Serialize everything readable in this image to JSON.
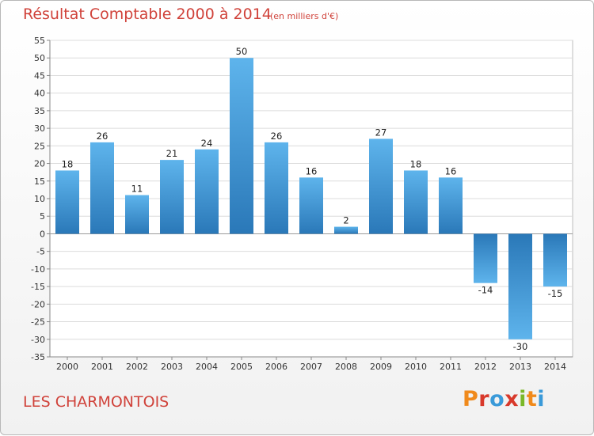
{
  "header": {
    "title": "Résultat Comptable 2000 à 2014",
    "unit": "(en milliers d'€)"
  },
  "footer": {
    "place": "LES CHARMONTOIS",
    "logo": [
      "P",
      "r",
      "o",
      "x",
      "i",
      "t",
      "i"
    ]
  },
  "colors": {
    "accent": "#d0423a",
    "bar_light": "#5eb4ec",
    "bar_dark": "#2a78b8"
  },
  "chart_data": {
    "type": "bar",
    "categories": [
      "2000",
      "2001",
      "2002",
      "2003",
      "2004",
      "2005",
      "2006",
      "2007",
      "2008",
      "2009",
      "2010",
      "2011",
      "2012",
      "2013",
      "2014"
    ],
    "values": [
      18,
      26,
      11,
      21,
      24,
      50,
      26,
      16,
      2,
      27,
      18,
      16,
      -14,
      -30,
      -15
    ],
    "ylim": [
      -35,
      55
    ],
    "yticks": [
      55,
      50,
      45,
      40,
      35,
      30,
      25,
      20,
      15,
      10,
      5,
      0,
      -5,
      -10,
      -15,
      -20,
      -25,
      -30,
      -35
    ],
    "grid": true
  }
}
